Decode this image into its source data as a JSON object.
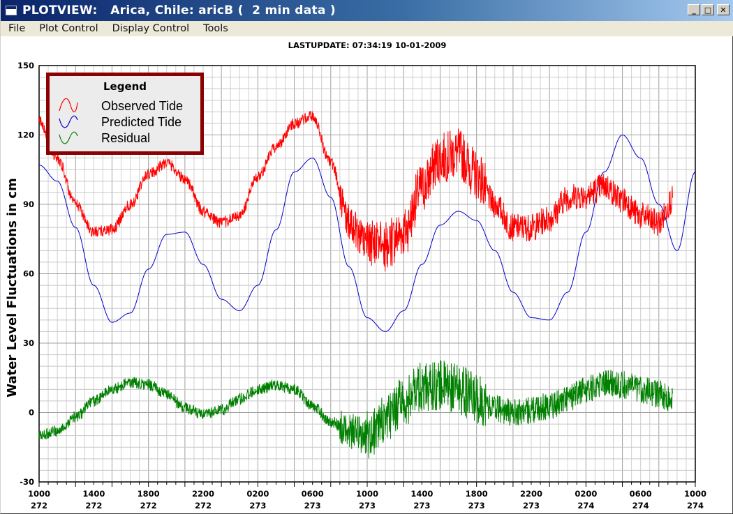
{
  "window": {
    "title": "PLOTVIEW:   Arica, Chile: aricB (  2 min data )",
    "buttons": {
      "minimize": "_",
      "maximize": "□",
      "close": "✕"
    }
  },
  "menu": [
    "File",
    "Plot Control",
    "Display Control",
    "Tools"
  ],
  "lastupdate": "LASTUPDATE: 07:34:19  10-01-2009",
  "legend": {
    "title": "Legend",
    "items": [
      {
        "label": "Observed Tide",
        "color": "#ff0000"
      },
      {
        "label": "Predicted Tide",
        "color": "#0000cc"
      },
      {
        "label": "Residual",
        "color": "#008000"
      }
    ]
  },
  "chart_data": {
    "type": "line",
    "title": "",
    "ylabel": "Water Level Fluctuations in cm",
    "ylim": [
      -30,
      150
    ],
    "yticks": [
      "150",
      "120",
      "90",
      "60",
      "30",
      "0",
      "-30"
    ],
    "xlim_hours": [
      0,
      72
    ],
    "xticks": [
      {
        "time": "1000",
        "day": "272"
      },
      {
        "time": "1400",
        "day": "272"
      },
      {
        "time": "1800",
        "day": "272"
      },
      {
        "time": "2200",
        "day": "272"
      },
      {
        "time": "0200",
        "day": "273"
      },
      {
        "time": "0600",
        "day": "273"
      },
      {
        "time": "1000",
        "day": "273"
      },
      {
        "time": "1400",
        "day": "273"
      },
      {
        "time": "1800",
        "day": "273"
      },
      {
        "time": "2200",
        "day": "273"
      },
      {
        "time": "0200",
        "day": "274"
      },
      {
        "time": "0600",
        "day": "274"
      },
      {
        "time": "1000",
        "day": "274"
      }
    ],
    "grid": true,
    "legend_position": "top-left",
    "series": [
      {
        "name": "Predicted Tide",
        "color": "#0000cc",
        "hours": [
          0,
          2,
          4,
          6,
          8,
          10,
          12,
          14,
          16,
          18,
          20,
          22,
          24,
          26,
          28,
          30,
          32,
          34,
          36,
          38,
          40,
          42,
          44,
          46,
          48,
          50,
          52,
          54,
          56,
          58,
          60,
          62,
          64,
          66,
          68,
          70,
          72
        ],
        "values": [
          107,
          100,
          80,
          55,
          39,
          43,
          62,
          77,
          78,
          64,
          49,
          44,
          55,
          79,
          104,
          110,
          93,
          63,
          41,
          35,
          44,
          64,
          81,
          87,
          83,
          70,
          52,
          41,
          40,
          52,
          78,
          104,
          120,
          110,
          90,
          70,
          104
        ]
      },
      {
        "name": "Residual",
        "color": "#008000",
        "hours": [
          0,
          2,
          4,
          6,
          8,
          10,
          12,
          14,
          16,
          18,
          20,
          22,
          24,
          26,
          28,
          30,
          32,
          34,
          36,
          38,
          40,
          42,
          44,
          46,
          48,
          50,
          52,
          54,
          56,
          58,
          60,
          62,
          64,
          66,
          68,
          69.5
        ],
        "values": [
          -10,
          -8,
          -2,
          5,
          10,
          13,
          12,
          8,
          2,
          -1,
          1,
          6,
          10,
          12,
          10,
          3,
          -4,
          -8,
          -10,
          -4,
          5,
          11,
          12,
          10,
          6,
          2,
          0,
          1,
          3,
          6,
          10,
          13,
          12,
          10,
          8,
          5
        ]
      },
      {
        "name": "Observed Tide",
        "color": "#ff0000",
        "hours": [
          0,
          2,
          4,
          6,
          8,
          10,
          12,
          14,
          16,
          18,
          20,
          22,
          24,
          26,
          28,
          30,
          32,
          34,
          36,
          38,
          40,
          42,
          44,
          46,
          48,
          50,
          52,
          54,
          56,
          58,
          60,
          62,
          64,
          66,
          68,
          69.5
        ],
        "values": [
          126,
          110,
          90,
          78,
          79,
          90,
          103,
          108,
          101,
          87,
          82,
          85,
          102,
          115,
          125,
          128,
          108,
          82,
          73,
          72,
          78,
          97,
          110,
          112,
          103,
          90,
          80,
          80,
          84,
          93,
          94,
          98,
          92,
          85,
          82,
          92
        ]
      }
    ]
  }
}
